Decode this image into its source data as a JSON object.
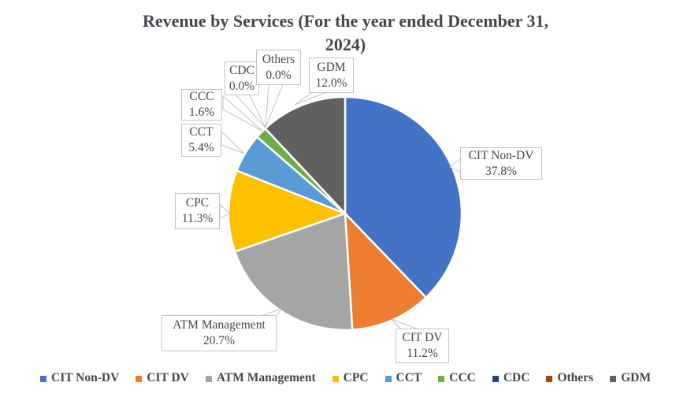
{
  "title": {
    "line1": "Revenue by Services (For the year ended December 31,",
    "line2": "2024)"
  },
  "chart_data": {
    "type": "pie",
    "title": "Revenue by Services (For the year ended December 31, 2024)",
    "labels": [
      "CIT Non-DV",
      "CIT DV",
      "ATM Management",
      "CPC",
      "CCT",
      "CCC",
      "CDC",
      "Others",
      "GDM"
    ],
    "values": [
      37.8,
      11.2,
      20.7,
      11.3,
      5.4,
      1.6,
      0.0,
      0.0,
      12.0
    ],
    "percent_labels": [
      "37.8%",
      "11.2%",
      "20.7%",
      "11.3%",
      "5.4%",
      "1.6%",
      "0.0%",
      "0.0%",
      "12.0%"
    ],
    "colors": [
      "#4472C4",
      "#ED7D31",
      "#A5A5A5",
      "#FFC000",
      "#5B9BD5",
      "#70AD47",
      "#264478",
      "#9E480E",
      "#606060"
    ],
    "start_angle_deg": 0,
    "direction": "clockwise",
    "slice_border_color": "#FFFFFF",
    "callout_border_color": "#C3C3C3",
    "text_color": "#44474C",
    "legend_position": "bottom",
    "data_label_format": "category name and percentage in callout boxes"
  }
}
